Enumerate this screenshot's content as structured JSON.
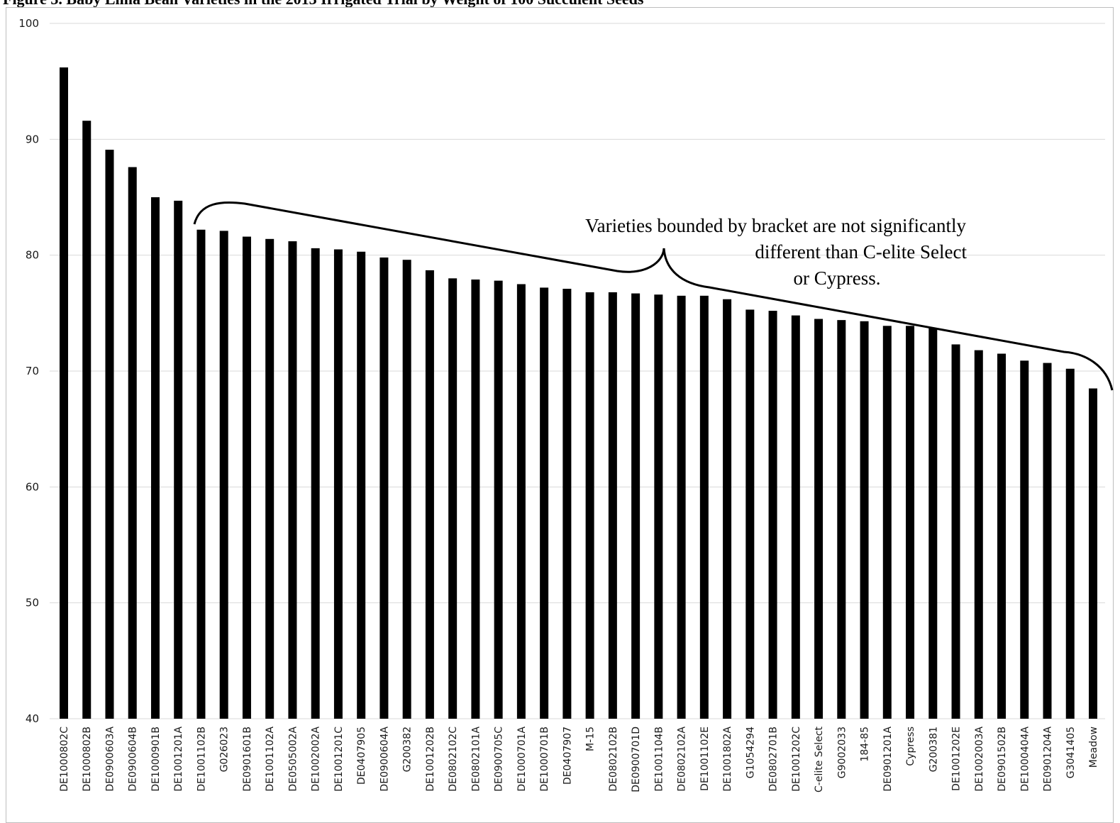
{
  "title": "Figure 3. Baby Lima Bean Varieties in the 2013 Irrigated Trial by Weight of 100 Succulent Seeds",
  "chart_data": {
    "type": "bar",
    "title": "Figure 3. Baby Lima Bean Varieties in the 2013 Irrigated Trial by Weight of 100 Succulent Seeds",
    "xlabel": "",
    "ylabel": "",
    "ylim": [
      40,
      100
    ],
    "yticks": [
      40,
      50,
      60,
      70,
      80,
      90,
      100
    ],
    "grid": true,
    "bar_color": "#000000",
    "categories": [
      "DE1000802C",
      "DE1000802B",
      "DE0900603A",
      "DE0900604B",
      "DE1000901B",
      "DE1001201A",
      "DE1001102B",
      "G026023",
      "DE0901601B",
      "DE1001102A",
      "DE0505002A",
      "DE1002002A",
      "DE1001201C",
      "DE0407905",
      "DE0900604A",
      "G200382",
      "DE1001202B",
      "DE0802102C",
      "DE0802101A",
      "DE0900705C",
      "DE1000701A",
      "DE1000701B",
      "DE0407907",
      "M-15",
      "DE0802102B",
      "DE0900701D",
      "DE1001104B",
      "DE0802102A",
      "DE1001102E",
      "DE1001802A",
      "G1054294",
      "DE0802701B",
      "DE1001202C",
      "C-elite Select",
      "G9002033",
      "184-85",
      "DE0901201A",
      "Cypress",
      "G200381",
      "DE1001202E",
      "DE1002003A",
      "DE0901502B",
      "DE1000404A",
      "DE0901204A",
      "G3041405",
      "Meadow"
    ],
    "values": [
      96.2,
      91.6,
      89.1,
      87.6,
      85.0,
      84.7,
      82.2,
      82.1,
      81.6,
      81.4,
      81.2,
      80.6,
      80.5,
      80.3,
      79.8,
      79.6,
      78.7,
      78.0,
      77.9,
      77.8,
      77.5,
      77.2,
      77.1,
      76.8,
      76.8,
      76.7,
      76.6,
      76.5,
      76.5,
      76.2,
      75.3,
      75.2,
      74.8,
      74.5,
      74.4,
      74.3,
      73.9,
      73.9,
      73.7,
      72.3,
      71.8,
      71.5,
      70.9,
      70.7,
      70.2,
      68.5
    ],
    "annotations": [
      {
        "text": "Varieties bounded by bracket are not significantly different than C-elite Select or Cypress.",
        "from_category": "DE1001102B",
        "to_category": "Meadow"
      }
    ]
  },
  "annotation_lines": [
    "Varieties bounded by bracket are not significantly",
    "different than C-elite Select",
    "or Cypress."
  ]
}
